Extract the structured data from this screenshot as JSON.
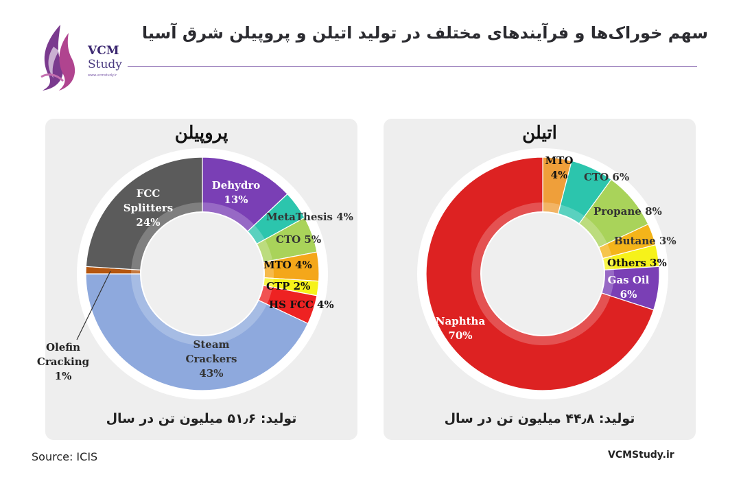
{
  "header": {
    "title": "سهم خوراک‌ها و فرآیندهای مختلف در تولید اتیلن و پروپیلن شرق آسیا",
    "logo_line1": "VCM",
    "logo_line2": "Study",
    "logo_url": "www.vcmstudy.ir"
  },
  "footer": {
    "source": "Source: ICIS",
    "site": "VCMStudy.ir"
  },
  "colors": {
    "panel_bg": "#eeeeee",
    "rule": "#7d5aa8"
  },
  "chart_data": [
    {
      "type": "donut",
      "title": "پروپیلن",
      "production": "تولید: ۵۱٫۶ میلیون تن در سال",
      "slices": [
        {
          "label": "Dehydro",
          "value_label": "13%",
          "value": 13,
          "color": "#7a3fb5"
        },
        {
          "label": "MetaThesis",
          "value_label": "4%",
          "value": 4,
          "color": "#2cc5ad"
        },
        {
          "label": "CTO",
          "value_label": "5%",
          "value": 5,
          "color": "#a9d35a"
        },
        {
          "label": "MTO",
          "value_label": "4%",
          "value": 4,
          "color": "#f4a71a"
        },
        {
          "label": "CTP",
          "value_label": "2%",
          "value": 2,
          "color": "#f6f21a"
        },
        {
          "label": "HS FCC",
          "value_label": "4%",
          "value": 4,
          "color": "#ee2222"
        },
        {
          "label": "Steam Crackers",
          "value_label": "43%",
          "value": 43,
          "color": "#8ea9dd"
        },
        {
          "label": "Olefin Cracking",
          "value_label": "1%",
          "value": 1,
          "color": "#b5560f"
        },
        {
          "label": "FCC Splitters",
          "value_label": "24%",
          "value": 24,
          "color": "#5b5b5b"
        }
      ]
    },
    {
      "type": "donut",
      "title": "اتیلن",
      "production": "تولید: ۴۴٫۸ میلیون تن در سال",
      "slices": [
        {
          "label": "MTO",
          "value_label": "4%",
          "value": 4,
          "color": "#ef9f3a"
        },
        {
          "label": "CTO",
          "value_label": "6%",
          "value": 6,
          "color": "#2cc5ad"
        },
        {
          "label": "Propane",
          "value_label": "8%",
          "value": 8,
          "color": "#a9d35a"
        },
        {
          "label": "Butane",
          "value_label": "3%",
          "value": 3,
          "color": "#f4b41a"
        },
        {
          "label": "Others",
          "value_label": "3%",
          "value": 3,
          "color": "#f6f21a"
        },
        {
          "label": "Gas Oil",
          "value_label": "6%",
          "value": 6,
          "color": "#7a3fb5"
        },
        {
          "label": "Naphtha",
          "value_label": "70%",
          "value": 70,
          "color": "#dd2222"
        }
      ]
    }
  ]
}
